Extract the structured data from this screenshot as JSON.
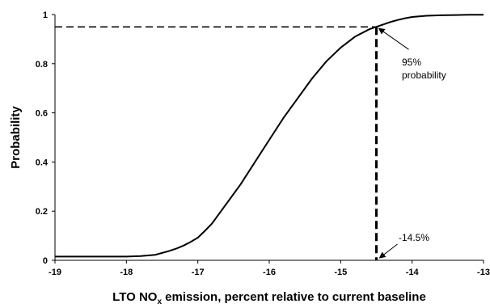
{
  "chart_data": {
    "type": "line",
    "title": "",
    "xlabel_main": "LTO NO",
    "xlabel_sub": "x",
    "xlabel_rest": " emission, percent relative to current baseline",
    "ylabel": "Probability",
    "xlim": [
      -19,
      -13
    ],
    "ylim": [
      0,
      1
    ],
    "x_ticks": [
      "-19",
      "-18",
      "-17",
      "-16",
      "-15",
      "-14",
      "-13"
    ],
    "y_ticks": [
      "0",
      "0.2",
      "0.4",
      "0.6",
      "0.8",
      "1"
    ],
    "grid": false,
    "series": [
      {
        "x": [
          -19,
          -18.5,
          -18,
          -17.8,
          -17.6,
          -17.5,
          -17.4,
          -17.3,
          -17.2,
          -17.1,
          -17.0,
          -16.9,
          -16.8,
          -16.6,
          -16.4,
          -16.2,
          -16.0,
          -15.8,
          -15.6,
          -15.4,
          -15.2,
          -15.0,
          -14.8,
          -14.6,
          -14.5,
          -14.4,
          -14.3,
          -14.2,
          -14.1,
          -14.0,
          -13.8,
          -13.6,
          -13.4,
          -13.2,
          -13.0
        ],
        "y": [
          0.015,
          0.015,
          0.015,
          0.017,
          0.022,
          0.03,
          0.038,
          0.048,
          0.06,
          0.075,
          0.092,
          0.12,
          0.15,
          0.23,
          0.31,
          0.4,
          0.49,
          0.58,
          0.66,
          0.74,
          0.81,
          0.865,
          0.91,
          0.94,
          0.95,
          0.96,
          0.97,
          0.978,
          0.985,
          0.99,
          0.995,
          0.997,
          0.998,
          0.999,
          0.999
        ]
      }
    ],
    "annotations": [
      {
        "id": "prob",
        "line1": "95%",
        "line2": "probability",
        "x": -14.5,
        "y": 0.95
      },
      {
        "id": "pct",
        "text": "-14.5%",
        "x": -14.5,
        "y": 0
      }
    ]
  }
}
